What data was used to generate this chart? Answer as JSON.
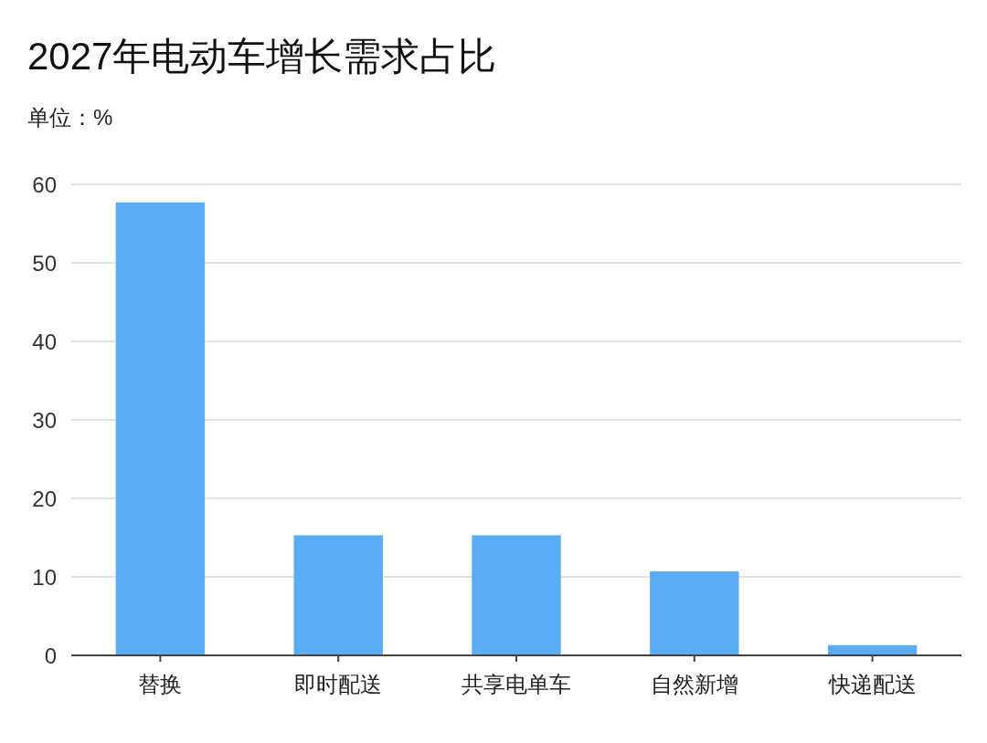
{
  "chart_data": {
    "type": "bar",
    "title": "2027年电动车增长需求占比",
    "subtitle": "单位：%",
    "categories": [
      "替换",
      "即时配送",
      "共享电单车",
      "自然新增",
      "快递配送"
    ],
    "values": [
      57.7,
      15.3,
      15.3,
      10.7,
      1.3
    ],
    "color": "#5aadf5",
    "ylim": [
      0,
      60
    ],
    "yticks": [
      0,
      10,
      20,
      30,
      40,
      50,
      60
    ],
    "grid": "y"
  }
}
